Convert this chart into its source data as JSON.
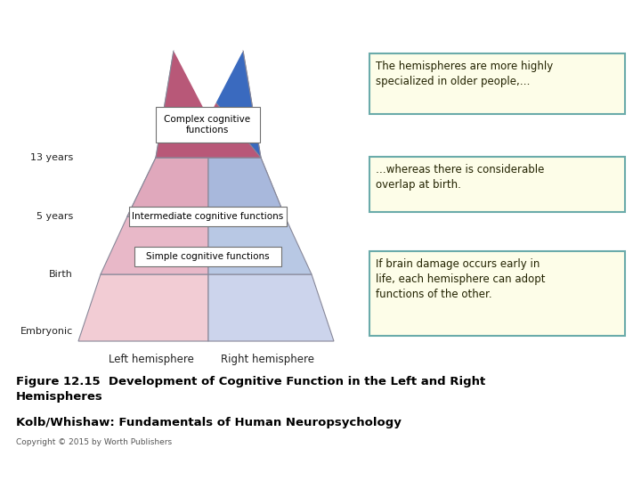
{
  "bg_color": "#ffffff",
  "left_tri_color": "#b85878",
  "right_tri_color": "#3a6abf",
  "left_colors": [
    "#f0c8d0",
    "#e8b8c4",
    "#dfa8b8"
  ],
  "right_colors": [
    "#c0cce8",
    "#b0bce0",
    "#a0acd8"
  ],
  "border_color": "#888899",
  "box_bg": "#fdfde8",
  "box_border": "#6aabaa",
  "box_border2": "#cc6666",
  "box_text_color": "#222200",
  "label_color": "#222222",
  "title_text": "Figure 12.15  Development of Cognitive Function in the Left and Right\nHemispheres",
  "subtitle_text": "Kolb/Whishaw: Fundamentals of Human Neuropsychology",
  "copyright_text": "Copyright © 2015 by Worth Publishers",
  "left_label": "Left hemisphere",
  "right_label": "Right hemisphere",
  "box1_text": "The hemispheres are more highly\nspecialized in older people,…",
  "box2_text": "…whereas there is considerable\noverlap at birth.",
  "box3_text": "If brain damage occurs early in\nlife, each hemisphere can adopt\nfunctions of the other.",
  "label1": "Complex cognitive\nfunctions",
  "label2": "Intermediate cognitive functions",
  "label3": "Simple cognitive functions"
}
